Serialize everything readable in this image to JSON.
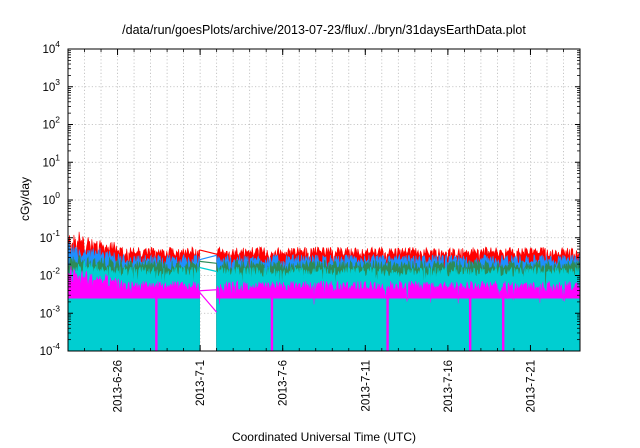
{
  "chart_data": {
    "type": "line",
    "title": "/data/run/goesPlots/archive/2013-07-23/flux/../bryn/31daysEarthData.plot",
    "xlabel": "Coordinated Universal Time (UTC)",
    "ylabel": "cGy/day",
    "y_scale": "log",
    "ylim": [
      "1e-4",
      "1e4"
    ],
    "xlim": [
      "2013-06-23",
      "2013-07-24"
    ],
    "grid": true,
    "legend": "none",
    "y_ticks": [
      {
        "base": "10",
        "exp": "-4"
      },
      {
        "base": "10",
        "exp": "-3"
      },
      {
        "base": "10",
        "exp": "-2"
      },
      {
        "base": "10",
        "exp": "-1"
      },
      {
        "base": "10",
        "exp": "0"
      },
      {
        "base": "10",
        "exp": "1"
      },
      {
        "base": "10",
        "exp": "2"
      },
      {
        "base": "10",
        "exp": "3"
      },
      {
        "base": "10",
        "exp": "4"
      }
    ],
    "x_ticks": [
      "2013-6-26",
      "2013-7-1",
      "2013-7-6",
      "2013-7-11",
      "2013-7-16",
      "2013-7-21"
    ],
    "data_gap": [
      "2013-07-01",
      "2013-07-02"
    ],
    "series": [
      {
        "color": "#ff0000",
        "typical": 0.04,
        "peak": 0.12
      },
      {
        "color": "#1e90ff",
        "typical": 0.025,
        "peak": 0.06
      },
      {
        "color": "#2e8b57",
        "typical": 0.018,
        "peak": 0.03
      },
      {
        "color": "#00ced1",
        "typical": 0.012,
        "peak": 0.02
      },
      {
        "color": "#ff00ff",
        "typical": 0.005,
        "floor": 0.0025,
        "peak": 0.015
      }
    ],
    "dropouts": [
      "2013-06-28",
      "2013-07-05",
      "2013-07-12",
      "2013-07-17",
      "2013-07-19"
    ]
  }
}
